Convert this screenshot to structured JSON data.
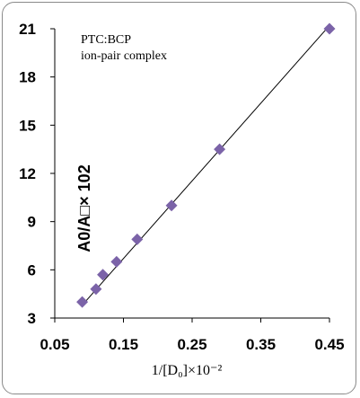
{
  "chart_data": {
    "type": "scatter",
    "title": "",
    "annotation_lines": [
      "PTC:BCP",
      "ion-pair complex"
    ],
    "xlabel": "1/[D₀]×10⁻²",
    "ylabel": "A0/A□× 102",
    "xlim": [
      0.05,
      0.45
    ],
    "ylim": [
      3,
      21
    ],
    "xticks": [
      "0.05",
      "0.15",
      "0.25",
      "0.35",
      "0.45"
    ],
    "yticks": [
      "3",
      "6",
      "9",
      "12",
      "15",
      "18",
      "21"
    ],
    "grid": false,
    "marker": "diamond",
    "marker_color": "#7b63a8",
    "line_color": "#000000",
    "x": [
      0.09,
      0.11,
      0.12,
      0.14,
      0.17,
      0.22,
      0.29,
      0.45
    ],
    "y": [
      4.0,
      4.8,
      5.7,
      6.5,
      7.9,
      10.0,
      13.5,
      21.0
    ],
    "trendline": {
      "x": [
        0.09,
        0.45
      ],
      "y": [
        3.8,
        21.2
      ]
    }
  }
}
